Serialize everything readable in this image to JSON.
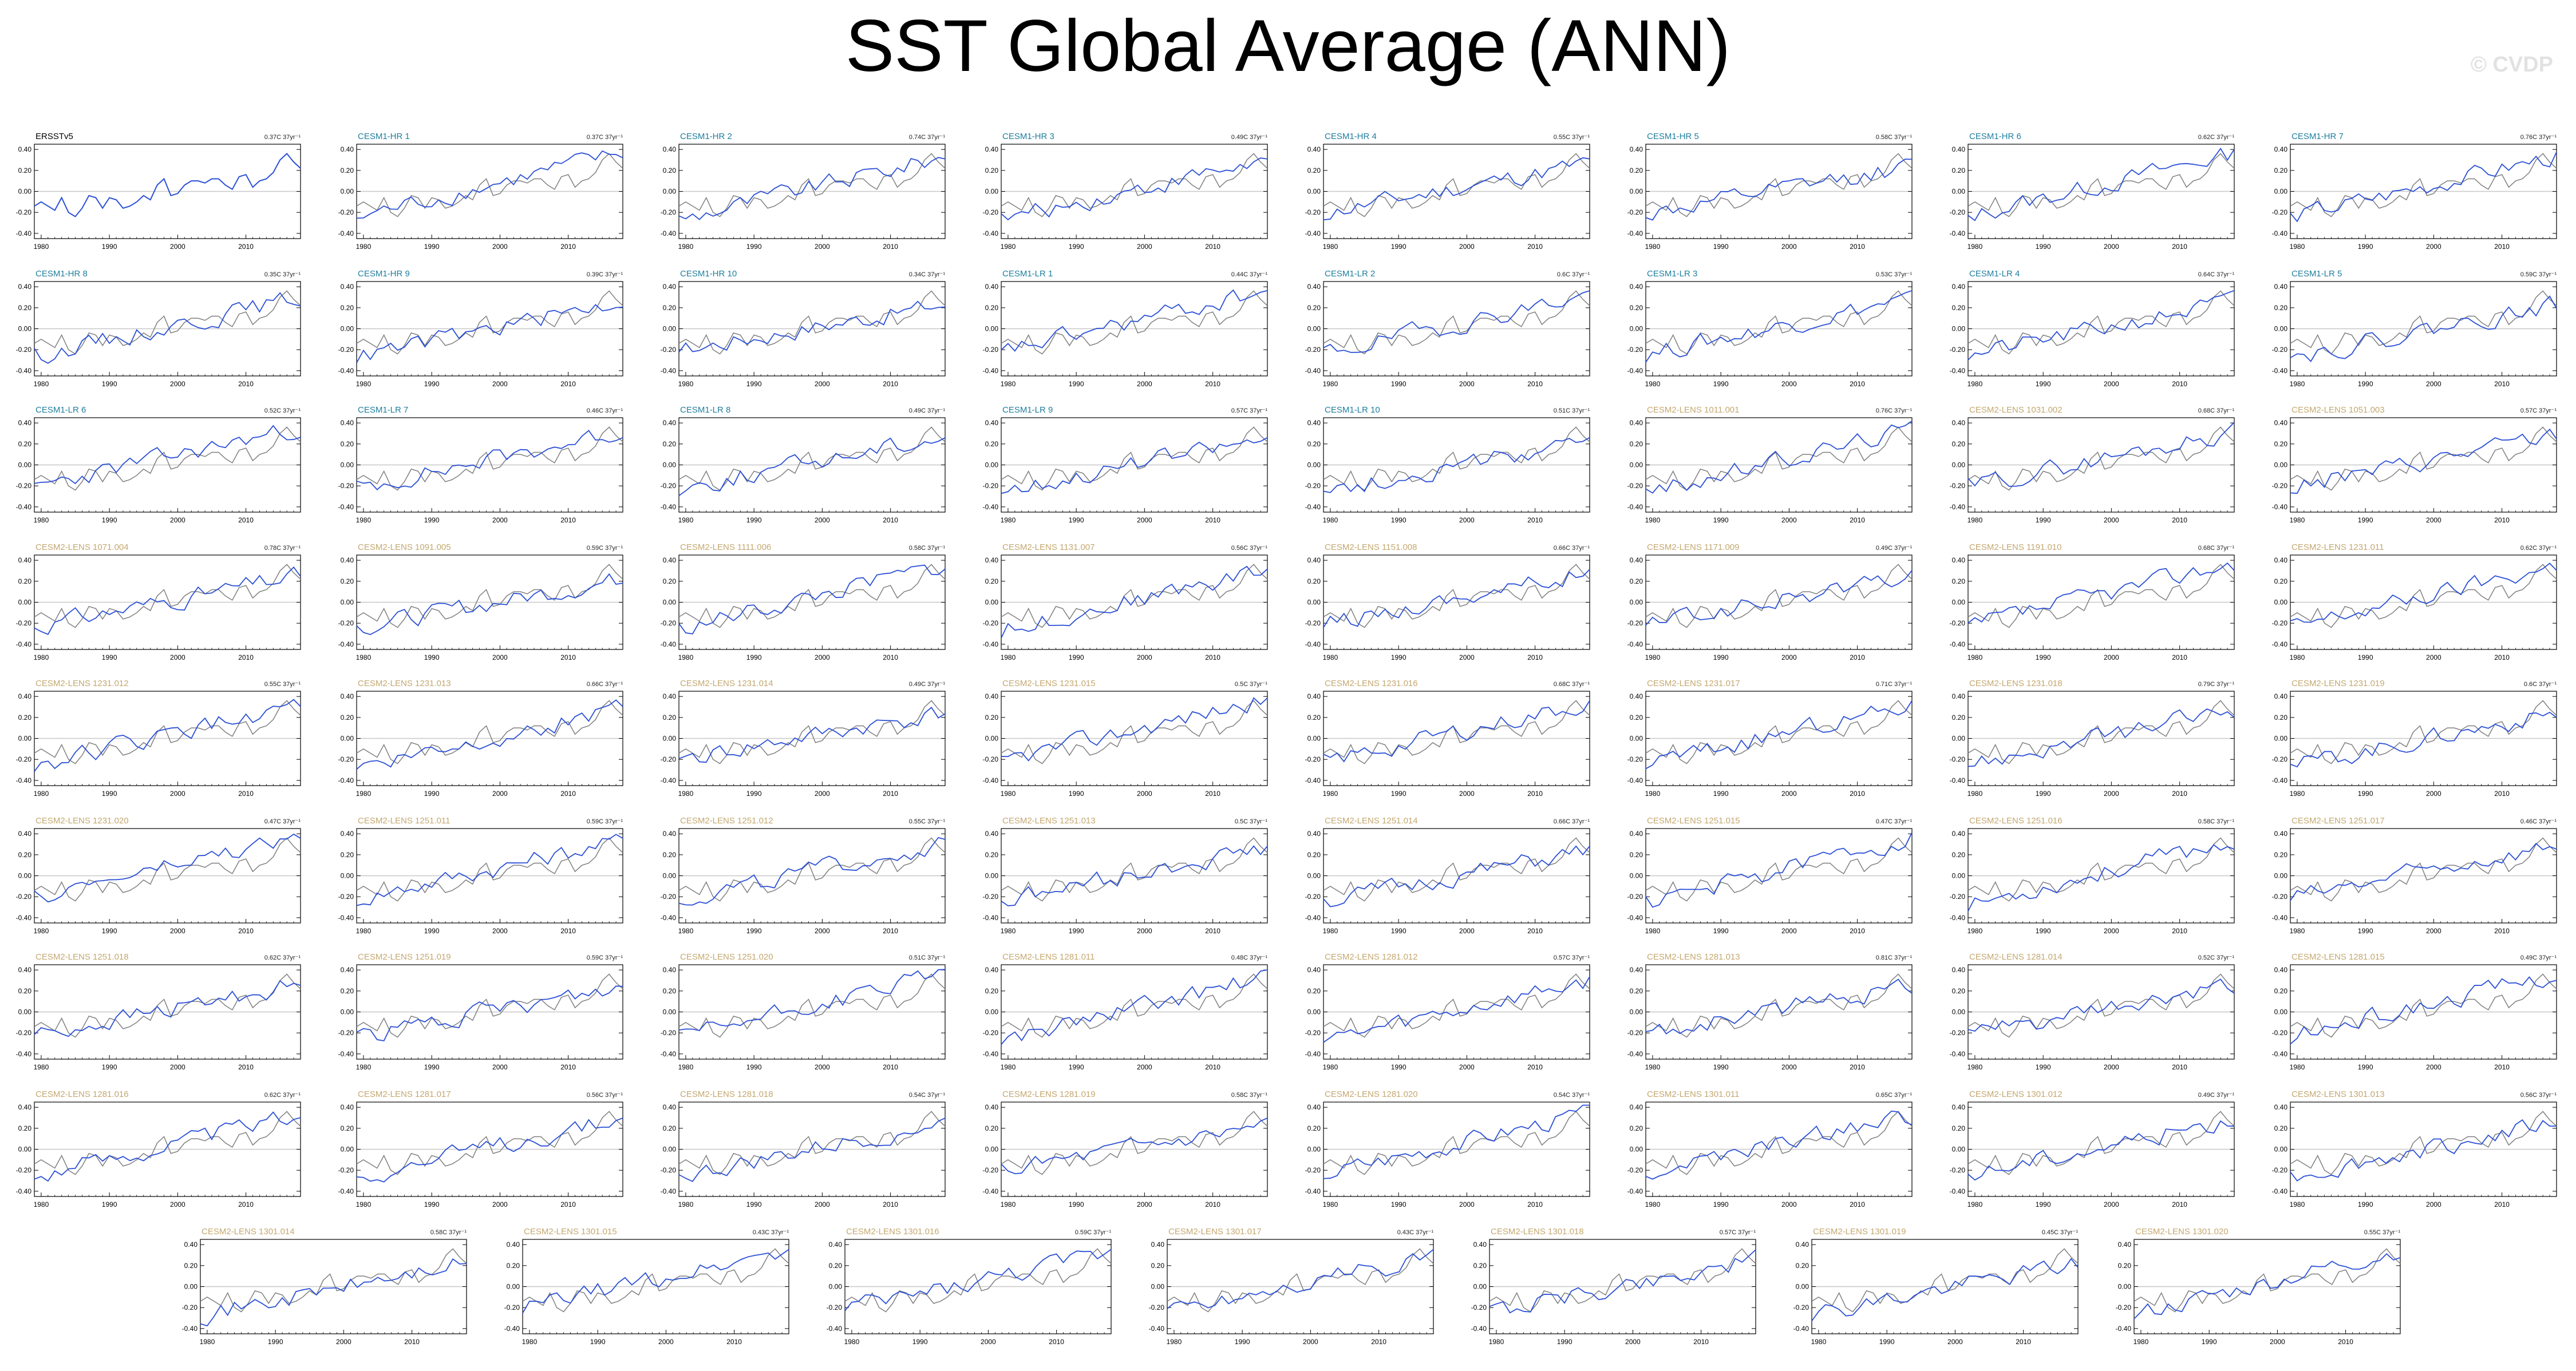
{
  "title": "SST Global Average (ANN)",
  "watermark": "© CVDP",
  "colors": {
    "observation": "#7f7f7f",
    "model": "#2a4fd6",
    "zero_line": "#c8c8c8",
    "obs_title": "#000000",
    "hr_lr_title": "#1e7e9e",
    "lens_title": "#c4a870"
  },
  "chart_data": {
    "type": "line",
    "xlim": [
      1979,
      2018
    ],
    "ylim": [
      -0.45,
      0.45
    ],
    "xticks": [
      1980,
      1990,
      2000,
      2010
    ],
    "yticks": [
      -0.4,
      -0.2,
      0.0,
      0.2,
      0.4
    ],
    "xtick_labels": [
      "1980",
      "1990",
      "2000",
      "2010"
    ],
    "ytick_labels": [
      "-0.40",
      "-0.20",
      "0.00",
      "0.20",
      "0.40"
    ],
    "observation": {
      "name": "ERSSTv5",
      "x": [
        1979,
        1980,
        1981,
        1982,
        1983,
        1984,
        1985,
        1986,
        1987,
        1988,
        1989,
        1990,
        1991,
        1992,
        1993,
        1994,
        1995,
        1996,
        1997,
        1998,
        1999,
        2000,
        2001,
        2002,
        2003,
        2004,
        2005,
        2006,
        2007,
        2008,
        2009,
        2010,
        2011,
        2012,
        2013,
        2014,
        2015,
        2016,
        2017,
        2018
      ],
      "y": [
        -0.14,
        -0.1,
        -0.14,
        -0.18,
        -0.06,
        -0.2,
        -0.24,
        -0.16,
        -0.04,
        -0.06,
        -0.16,
        -0.06,
        -0.08,
        -0.16,
        -0.14,
        -0.1,
        -0.04,
        -0.08,
        0.06,
        0.12,
        -0.04,
        -0.02,
        0.06,
        0.1,
        0.1,
        0.08,
        0.12,
        0.12,
        0.06,
        0.02,
        0.14,
        0.16,
        0.04,
        0.1,
        0.12,
        0.18,
        0.3,
        0.36,
        0.28,
        0.22
      ]
    },
    "panels": [
      {
        "label": "ERSSTv5",
        "trend": "0.37C 37yr⁻¹"
      },
      {
        "label": "CESM1-HR 1",
        "trend": "0.37C 37yr⁻¹"
      },
      {
        "label": "CESM1-HR 2",
        "trend": "0.74C 37yr⁻¹"
      },
      {
        "label": "CESM1-HR 3",
        "trend": "0.49C 37yr⁻¹"
      },
      {
        "label": "CESM1-HR 4",
        "trend": "0.55C 37yr⁻¹"
      },
      {
        "label": "CESM1-HR 5",
        "trend": "0.58C 37yr⁻¹"
      },
      {
        "label": "CESM1-HR 6",
        "trend": "0.62C 37yr⁻¹"
      },
      {
        "label": "CESM1-HR 7",
        "trend": "0.76C 37yr⁻¹"
      },
      {
        "label": "CESM1-HR 8",
        "trend": "0.35C 37yr⁻¹"
      },
      {
        "label": "CESM1-HR 9",
        "trend": "0.39C 37yr⁻¹"
      },
      {
        "label": "CESM1-HR 10",
        "trend": "0.34C 37yr⁻¹"
      },
      {
        "label": "CESM1-LR 1",
        "trend": "0.44C 37yr⁻¹"
      },
      {
        "label": "CESM1-LR 2",
        "trend": "0.6C 37yr⁻¹"
      },
      {
        "label": "CESM1-LR 3",
        "trend": "0.53C 37yr⁻¹"
      },
      {
        "label": "CESM1-LR 4",
        "trend": "0.64C 37yr⁻¹"
      },
      {
        "label": "CESM1-LR 5",
        "trend": "0.59C 37yr⁻¹"
      },
      {
        "label": "CESM1-LR 6",
        "trend": "0.52C 37yr⁻¹"
      },
      {
        "label": "CESM1-LR 7",
        "trend": "0.46C 37yr⁻¹"
      },
      {
        "label": "CESM1-LR 8",
        "trend": "0.49C 37yr⁻¹"
      },
      {
        "label": "CESM1-LR 9",
        "trend": "0.57C 37yr⁻¹"
      },
      {
        "label": "CESM1-LR 10",
        "trend": "0.51C 37yr⁻¹"
      },
      {
        "label": "CESM2-LENS 1011.001",
        "trend": "0.76C 37yr⁻¹"
      },
      {
        "label": "CESM2-LENS 1031.002",
        "trend": "0.68C 37yr⁻¹"
      },
      {
        "label": "CESM2-LENS 1051.003",
        "trend": "0.57C 37yr⁻¹"
      },
      {
        "label": "CESM2-LENS 1071.004",
        "trend": "0.78C 37yr⁻¹"
      },
      {
        "label": "CESM2-LENS 1091.005",
        "trend": "0.59C 37yr⁻¹"
      },
      {
        "label": "CESM2-LENS 1111.006",
        "trend": "0.58C 37yr⁻¹"
      },
      {
        "label": "CESM2-LENS 1131.007",
        "trend": "0.56C 37yr⁻¹"
      },
      {
        "label": "CESM2-LENS 1151.008",
        "trend": "0.66C 37yr⁻¹"
      },
      {
        "label": "CESM2-LENS 1171.009",
        "trend": "0.49C 37yr⁻¹"
      },
      {
        "label": "CESM2-LENS 1191.010",
        "trend": "0.68C 37yr⁻¹"
      },
      {
        "label": "CESM2-LENS 1231.011",
        "trend": "0.62C 37yr⁻¹"
      },
      {
        "label": "CESM2-LENS 1231.012",
        "trend": "0.55C 37yr⁻¹"
      },
      {
        "label": "CESM2-LENS 1231.013",
        "trend": "0.66C 37yr⁻¹"
      },
      {
        "label": "CESM2-LENS 1231.014",
        "trend": "0.49C 37yr⁻¹"
      },
      {
        "label": "CESM2-LENS 1231.015",
        "trend": "0.5C 37yr⁻¹"
      },
      {
        "label": "CESM2-LENS 1231.016",
        "trend": "0.68C 37yr⁻¹"
      },
      {
        "label": "CESM2-LENS 1231.017",
        "trend": "0.71C 37yr⁻¹"
      },
      {
        "label": "CESM2-LENS 1231.018",
        "trend": "0.79C 37yr⁻¹"
      },
      {
        "label": "CESM2-LENS 1231.019",
        "trend": "0.6C 37yr⁻¹"
      },
      {
        "label": "CESM2-LENS 1231.020",
        "trend": "0.47C 37yr⁻¹"
      },
      {
        "label": "CESM2-LENS 1251.011",
        "trend": "0.59C 37yr⁻¹"
      },
      {
        "label": "CESM2-LENS 1251.012",
        "trend": "0.55C 37yr⁻¹"
      },
      {
        "label": "CESM2-LENS 1251.013",
        "trend": "0.5C 37yr⁻¹"
      },
      {
        "label": "CESM2-LENS 1251.014",
        "trend": "0.66C 37yr⁻¹"
      },
      {
        "label": "CESM2-LENS 1251.015",
        "trend": "0.47C 37yr⁻¹"
      },
      {
        "label": "CESM2-LENS 1251.016",
        "trend": "0.58C 37yr⁻¹"
      },
      {
        "label": "CESM2-LENS 1251.017",
        "trend": "0.46C 37yr⁻¹"
      },
      {
        "label": "CESM2-LENS 1251.018",
        "trend": "0.62C 37yr⁻¹"
      },
      {
        "label": "CESM2-LENS 1251.019",
        "trend": "0.59C 37yr⁻¹"
      },
      {
        "label": "CESM2-LENS 1251.020",
        "trend": "0.51C 37yr⁻¹"
      },
      {
        "label": "CESM2-LENS 1281.011",
        "trend": "0.48C 37yr⁻¹"
      },
      {
        "label": "CESM2-LENS 1281.012",
        "trend": "0.57C 37yr⁻¹"
      },
      {
        "label": "CESM2-LENS 1281.013",
        "trend": "0.81C 37yr⁻¹"
      },
      {
        "label": "CESM2-LENS 1281.014",
        "trend": "0.52C 37yr⁻¹"
      },
      {
        "label": "CESM2-LENS 1281.015",
        "trend": "0.49C 37yr⁻¹"
      },
      {
        "label": "CESM2-LENS 1281.016",
        "trend": "0.62C 37yr⁻¹"
      },
      {
        "label": "CESM2-LENS 1281.017",
        "trend": "0.56C 37yr⁻¹"
      },
      {
        "label": "CESM2-LENS 1281.018",
        "trend": "0.54C 37yr⁻¹"
      },
      {
        "label": "CESM2-LENS 1281.019",
        "trend": "0.58C 37yr⁻¹"
      },
      {
        "label": "CESM2-LENS 1281.020",
        "trend": "0.54C 37yr⁻¹"
      },
      {
        "label": "CESM2-LENS 1301.011",
        "trend": "0.65C 37yr⁻¹"
      },
      {
        "label": "CESM2-LENS 1301.012",
        "trend": "0.49C 37yr⁻¹"
      },
      {
        "label": "CESM2-LENS 1301.013",
        "trend": "0.56C 37yr⁻¹"
      },
      {
        "label": "CESM2-LENS 1301.014",
        "trend": "0.58C 37yr⁻¹"
      },
      {
        "label": "CESM2-LENS 1301.015",
        "trend": "0.43C 37yr⁻¹"
      },
      {
        "label": "CESM2-LENS 1301.016",
        "trend": "0.59C 37yr⁻¹"
      },
      {
        "label": "CESM2-LENS 1301.017",
        "trend": "0.43C 37yr⁻¹"
      },
      {
        "label": "CESM2-LENS 1301.018",
        "trend": "0.57C 37yr⁻¹"
      },
      {
        "label": "CESM2-LENS 1301.019",
        "trend": "0.45C 37yr⁻¹"
      },
      {
        "label": "CESM2-LENS 1301.020",
        "trend": "0.55C 37yr⁻¹"
      }
    ]
  }
}
